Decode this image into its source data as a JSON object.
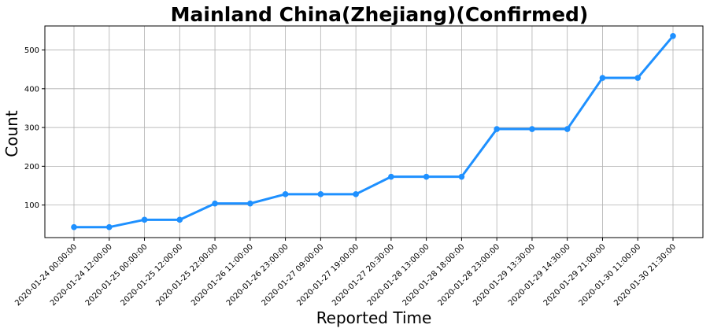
{
  "chart_data": {
    "type": "line",
    "title": "Mainland China(Zhejiang)(Confirmed)",
    "xlabel": "Reported Time",
    "ylabel": "Count",
    "categories": [
      "2020-01-24 00:00:00",
      "2020-01-24 12:00:00",
      "2020-01-25 00:00:00",
      "2020-01-25 12:00:00",
      "2020-01-25 22:00:00",
      "2020-01-26 11:00:00",
      "2020-01-26 23:00:00",
      "2020-01-27 09:00:00",
      "2020-01-27 19:00:00",
      "2020-01-27 20:30:00",
      "2020-01-28 13:00:00",
      "2020-01-28 18:00:00",
      "2020-01-28 23:00:00",
      "2020-01-29 13:30:00",
      "2020-01-29 14:30:00",
      "2020-01-29 21:00:00",
      "2020-01-30 11:00:00",
      "2020-01-30 21:30:00"
    ],
    "values": [
      43,
      43,
      62,
      62,
      104,
      104,
      128,
      128,
      128,
      173,
      173,
      173,
      296,
      296,
      296,
      428,
      428,
      536
    ],
    "ylim": [
      16,
      562
    ],
    "yticks": [
      "100",
      "200",
      "300",
      "400",
      "500"
    ],
    "grid": true,
    "line_color": "#1e90ff",
    "marker": "circle"
  }
}
